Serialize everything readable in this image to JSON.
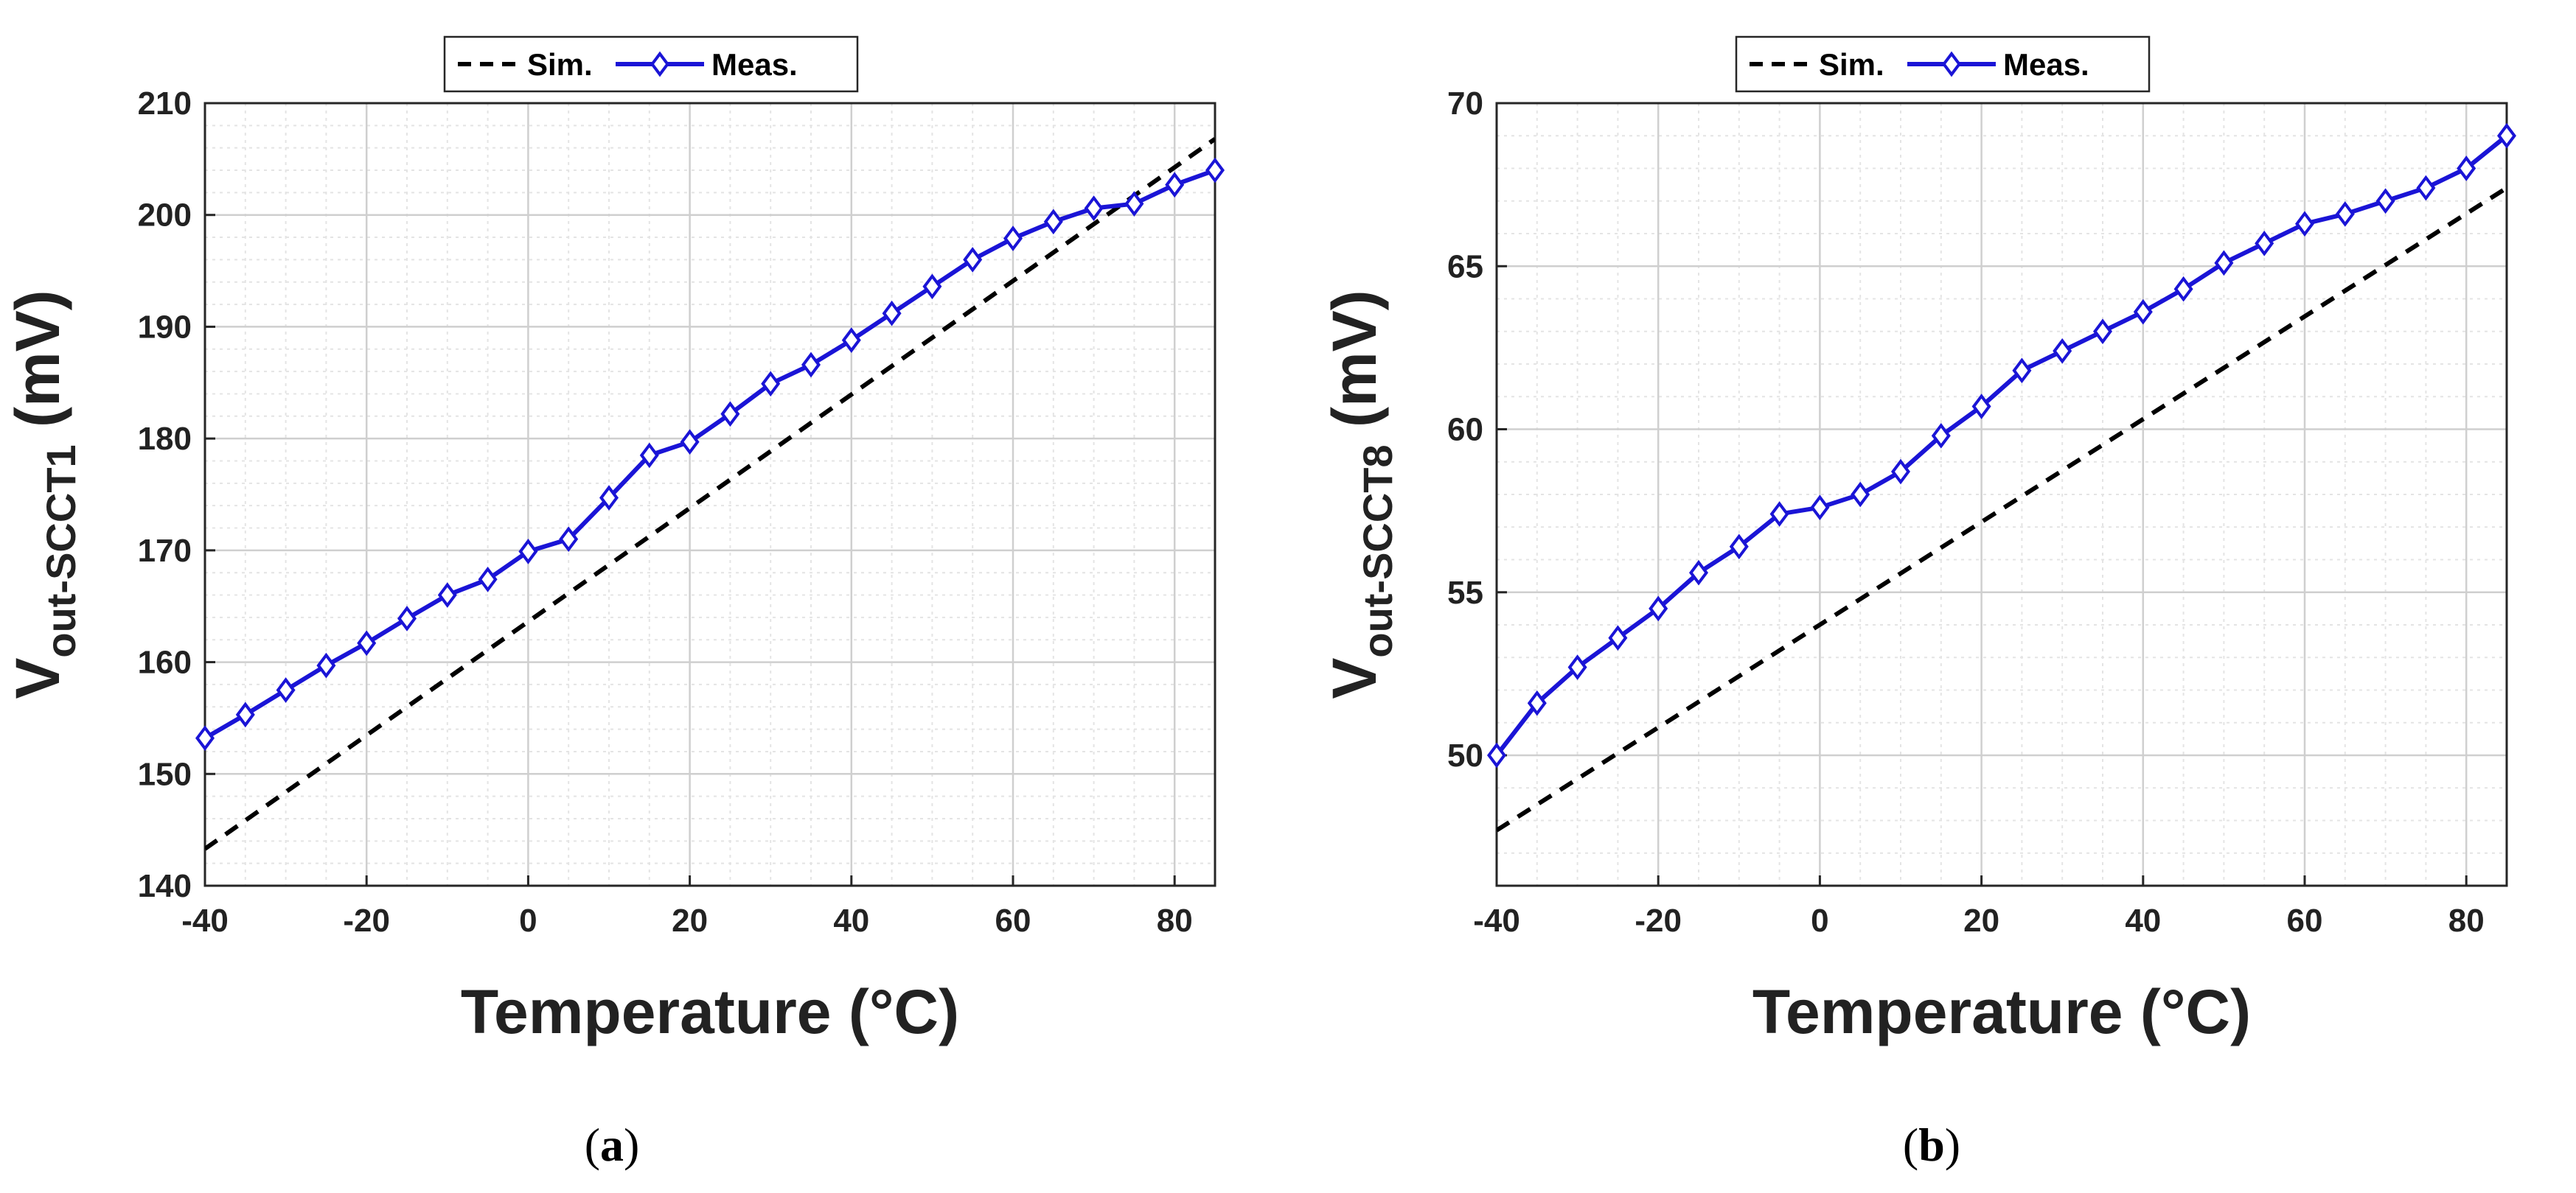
{
  "colors": {
    "sim": "#000000",
    "meas": "#1a14d6",
    "grid_major": "#cfcfcf",
    "grid_minor": "#e4e4e4",
    "axis": "#262626"
  },
  "legend": {
    "sim": "Sim.",
    "meas": "Meas."
  },
  "chart_data": [
    {
      "type": "line",
      "panel": "a",
      "caption": {
        "open": "(",
        "letter": "a",
        "close": ")"
      },
      "xlabel": "Temperature (°C)",
      "ylabel": {
        "main": "V",
        "sub": "out-SCCT1",
        "unit": " (mV)"
      },
      "xlim": [
        -40,
        85
      ],
      "ylim": [
        140,
        210
      ],
      "xticks": [
        -40,
        -20,
        0,
        20,
        40,
        60,
        80
      ],
      "yticks": [
        140,
        150,
        160,
        170,
        180,
        190,
        200,
        210
      ],
      "grid": true,
      "legend_position": "top-center",
      "series": [
        {
          "name": "Sim.",
          "style": "dashed",
          "x": [
            -40,
            85
          ],
          "y": [
            143.3,
            206.8
          ]
        },
        {
          "name": "Meas.",
          "style": "solid-diamond",
          "x": [
            -40,
            -35,
            -30,
            -25,
            -20,
            -15,
            -10,
            -5,
            0,
            5,
            10,
            15,
            20,
            25,
            30,
            35,
            40,
            45,
            50,
            55,
            60,
            65,
            70,
            75,
            80,
            85
          ],
          "y": [
            153.2,
            155.3,
            157.5,
            159.7,
            161.7,
            163.9,
            166.0,
            167.4,
            169.9,
            171.0,
            174.7,
            178.5,
            179.7,
            182.2,
            184.9,
            186.6,
            188.8,
            191.2,
            193.6,
            196.0,
            197.9,
            199.4,
            200.6,
            201.0,
            202.7,
            204.0
          ]
        }
      ]
    },
    {
      "type": "line",
      "panel": "b",
      "caption": {
        "open": "(",
        "letter": "b",
        "close": ")"
      },
      "xlabel": "Temperature (°C)",
      "ylabel": {
        "main": "V",
        "sub": "out-SCCT8",
        "unit": " (mV)"
      },
      "xlim": [
        -40,
        85
      ],
      "ylim": [
        46,
        70
      ],
      "xticks": [
        -40,
        -20,
        0,
        20,
        40,
        60,
        80
      ],
      "yticks": [
        50,
        55,
        60,
        65,
        70
      ],
      "grid": true,
      "legend_position": "top-center",
      "series": [
        {
          "name": "Sim.",
          "style": "dashed",
          "x": [
            -40,
            85
          ],
          "y": [
            47.7,
            67.4
          ]
        },
        {
          "name": "Meas.",
          "style": "solid-diamond",
          "x": [
            -40,
            -35,
            -30,
            -25,
            -20,
            -15,
            -10,
            -5,
            0,
            5,
            10,
            15,
            20,
            25,
            30,
            35,
            40,
            45,
            50,
            55,
            60,
            65,
            70,
            75,
            80,
            85
          ],
          "y": [
            50.0,
            51.6,
            52.7,
            53.6,
            54.5,
            55.6,
            56.4,
            57.4,
            57.6,
            58.0,
            58.7,
            59.8,
            60.7,
            61.8,
            62.4,
            63.0,
            63.6,
            64.3,
            65.1,
            65.7,
            66.3,
            66.6,
            67.0,
            67.4,
            68.0,
            69.0
          ]
        }
      ]
    }
  ]
}
